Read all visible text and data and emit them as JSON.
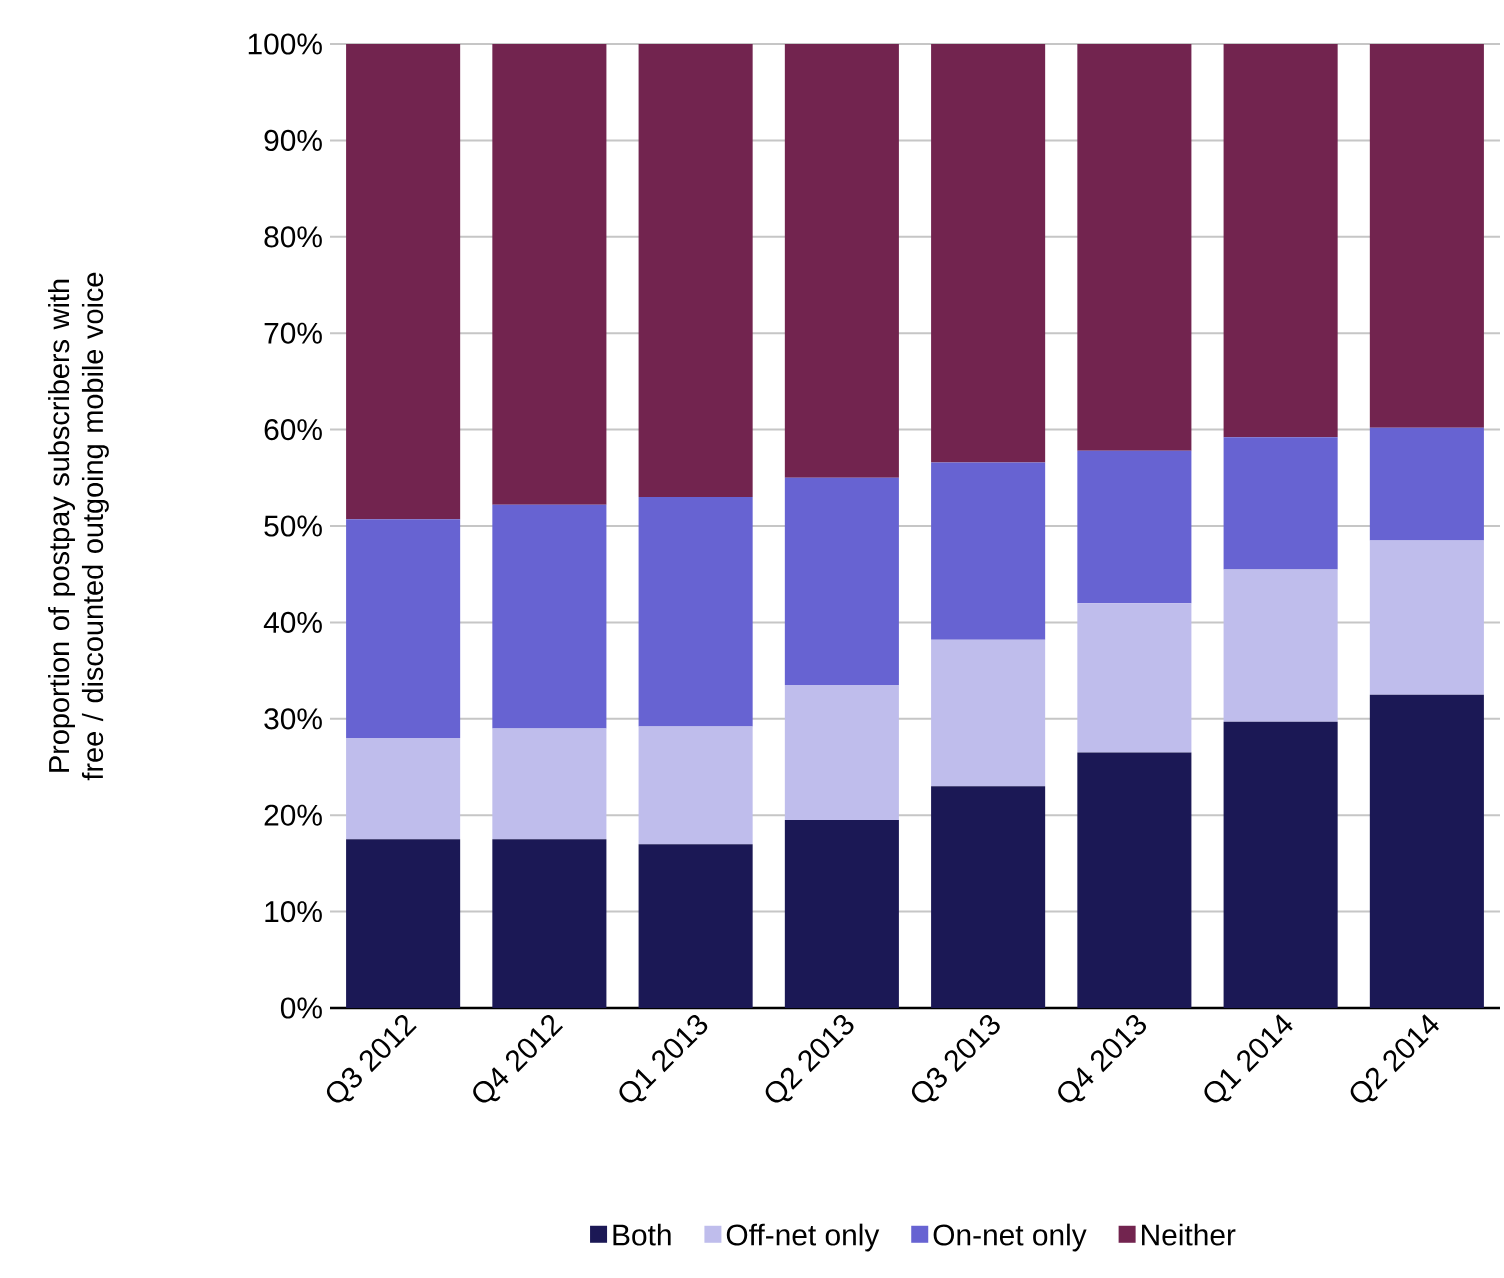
{
  "chart_data": {
    "type": "bar",
    "stacked": true,
    "ylabel": "Proportion of postpay subscribers with free / discounted outgoing mobile voice",
    "categories": [
      "Q3 2012",
      "Q4 2012",
      "Q1 2013",
      "Q2 2013",
      "Q3 2013",
      "Q4 2013",
      "Q1 2014",
      "Q2 2014"
    ],
    "series": [
      {
        "name": "Both",
        "color": "#1b1855",
        "values": [
          17.5,
          17.5,
          17.0,
          19.5,
          23.0,
          26.5,
          29.7,
          32.5
        ]
      },
      {
        "name": "Off-net only",
        "color": "#bfbdec",
        "values": [
          10.5,
          11.5,
          12.2,
          14.0,
          15.2,
          15.5,
          15.8,
          16.0
        ]
      },
      {
        "name": "On-net only",
        "color": "#6763d2",
        "values": [
          22.7,
          23.2,
          23.8,
          21.5,
          18.4,
          15.8,
          13.7,
          11.7
        ]
      },
      {
        "name": "Neither",
        "color": "#72244f",
        "values": [
          49.3,
          47.8,
          47.0,
          45.0,
          43.4,
          42.2,
          40.8,
          39.8
        ]
      }
    ],
    "ylim": [
      0,
      100
    ],
    "yticks": [
      {
        "value": 0,
        "label": "0%"
      },
      {
        "value": 10,
        "label": "10%"
      },
      {
        "value": 20,
        "label": "20%"
      },
      {
        "value": 30,
        "label": "30%"
      },
      {
        "value": 40,
        "label": "40%"
      },
      {
        "value": 50,
        "label": "50%"
      },
      {
        "value": 60,
        "label": "60%"
      },
      {
        "value": 70,
        "label": "70%"
      },
      {
        "value": 80,
        "label": "80%"
      },
      {
        "value": 90,
        "label": "90%"
      },
      {
        "value": 100,
        "label": "100%"
      }
    ],
    "grid": "y",
    "legend": "bottom"
  }
}
